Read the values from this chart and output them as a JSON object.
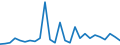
{
  "x": [
    0,
    1,
    2,
    3,
    4,
    5,
    6,
    7,
    8,
    9,
    10,
    11,
    12,
    13,
    14,
    15,
    16,
    17,
    18,
    19,
    20,
    21,
    22,
    23,
    24
  ],
  "y": [
    0.2,
    0.3,
    0.5,
    1.5,
    1.0,
    0.7,
    1.0,
    0.8,
    1.5,
    9.5,
    1.2,
    0.5,
    5.0,
    1.0,
    0.5,
    4.0,
    1.5,
    2.5,
    1.5,
    2.2,
    1.8,
    1.2,
    2.5,
    1.8,
    1.0
  ],
  "line_color": "#1a7abf",
  "background_color": "#ffffff",
  "linewidth": 1.2
}
